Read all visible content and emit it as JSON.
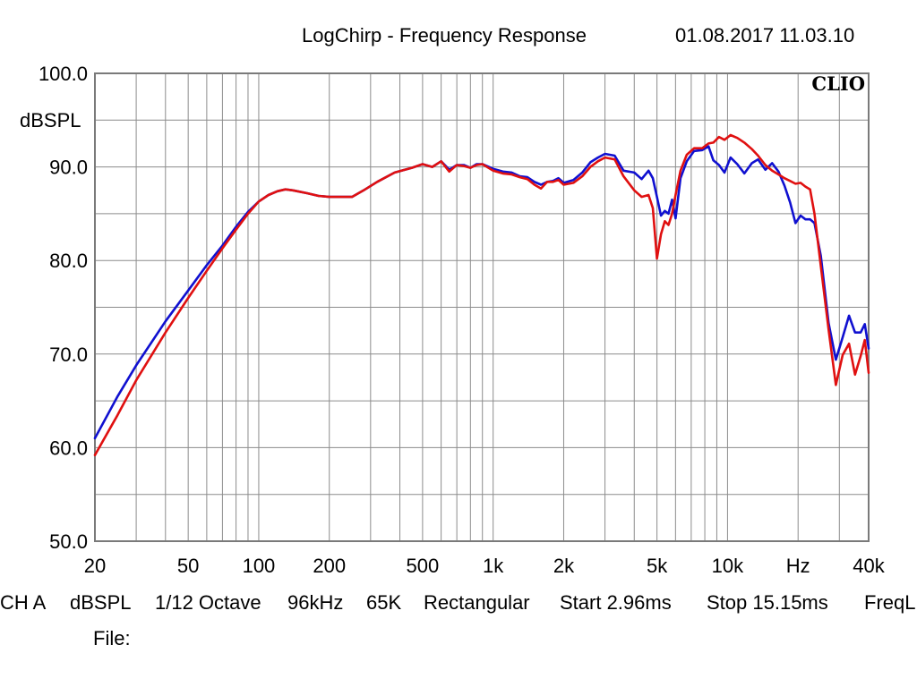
{
  "header": {
    "title": "LogChirp - Frequency Response",
    "datetime": "01.08.2017 11.03.10",
    "logo": "CLIO"
  },
  "footer": {
    "items": [
      "CH A",
      "dBSPL",
      "1/12 Octave",
      "96kHz",
      "65K",
      "Rectangular",
      "Start 2.96ms",
      "Stop 15.15ms",
      "FreqL"
    ],
    "file_label": "File:"
  },
  "chart_data": {
    "type": "line",
    "title": "LogChirp - Frequency Response",
    "xlabel": "Hz",
    "ylabel": "dBSPL",
    "xscale": "log",
    "xlim": [
      20,
      40000
    ],
    "ylim": [
      50,
      100
    ],
    "grid": true,
    "x_ticks": [
      {
        "value": 20,
        "label": "20"
      },
      {
        "value": 50,
        "label": "50"
      },
      {
        "value": 100,
        "label": "100"
      },
      {
        "value": 200,
        "label": "200"
      },
      {
        "value": 500,
        "label": "500"
      },
      {
        "value": 1000,
        "label": "1k"
      },
      {
        "value": 2000,
        "label": "2k"
      },
      {
        "value": 5000,
        "label": "5k"
      },
      {
        "value": 10000,
        "label": "10k"
      },
      {
        "value": 20000,
        "label": "Hz"
      },
      {
        "value": 40000,
        "label": "40k"
      }
    ],
    "y_ticks": [
      {
        "value": 100,
        "label": "100.0"
      },
      {
        "value": 90,
        "label": "90.0"
      },
      {
        "value": 80,
        "label": "80.0"
      },
      {
        "value": 70,
        "label": "70.0"
      },
      {
        "value": 60,
        "label": "60.0"
      },
      {
        "value": 50,
        "label": "50.0"
      }
    ],
    "series": [
      {
        "color": "#1010d0",
        "points": [
          [
            20,
            61.0
          ],
          [
            25,
            65.5
          ],
          [
            30,
            68.8
          ],
          [
            40,
            73.5
          ],
          [
            50,
            76.8
          ],
          [
            60,
            79.5
          ],
          [
            70,
            81.6
          ],
          [
            80,
            83.6
          ],
          [
            90,
            85.2
          ],
          [
            100,
            86.3
          ],
          [
            110,
            87.0
          ],
          [
            120,
            87.4
          ],
          [
            130,
            87.6
          ],
          [
            140,
            87.5
          ],
          [
            160,
            87.2
          ],
          [
            180,
            86.9
          ],
          [
            200,
            86.8
          ],
          [
            220,
            86.8
          ],
          [
            250,
            86.8
          ],
          [
            280,
            87.5
          ],
          [
            320,
            88.4
          ],
          [
            380,
            89.4
          ],
          [
            450,
            89.9
          ],
          [
            500,
            90.3
          ],
          [
            550,
            90.0
          ],
          [
            600,
            90.6
          ],
          [
            650,
            89.7
          ],
          [
            700,
            90.2
          ],
          [
            750,
            90.2
          ],
          [
            800,
            89.9
          ],
          [
            850,
            90.3
          ],
          [
            900,
            90.3
          ],
          [
            1000,
            89.8
          ],
          [
            1100,
            89.5
          ],
          [
            1200,
            89.4
          ],
          [
            1300,
            89.0
          ],
          [
            1400,
            88.9
          ],
          [
            1500,
            88.4
          ],
          [
            1600,
            88.1
          ],
          [
            1700,
            88.4
          ],
          [
            1800,
            88.5
          ],
          [
            1900,
            88.8
          ],
          [
            2000,
            88.3
          ],
          [
            2200,
            88.6
          ],
          [
            2400,
            89.4
          ],
          [
            2600,
            90.5
          ],
          [
            2800,
            91.0
          ],
          [
            3000,
            91.4
          ],
          [
            3300,
            91.2
          ],
          [
            3600,
            89.6
          ],
          [
            4000,
            89.4
          ],
          [
            4300,
            88.7
          ],
          [
            4600,
            89.6
          ],
          [
            4800,
            88.8
          ],
          [
            5000,
            86.8
          ],
          [
            5200,
            84.8
          ],
          [
            5400,
            85.3
          ],
          [
            5600,
            85.0
          ],
          [
            5800,
            86.5
          ],
          [
            6000,
            84.5
          ],
          [
            6300,
            88.8
          ],
          [
            6700,
            90.6
          ],
          [
            7200,
            91.7
          ],
          [
            7800,
            91.8
          ],
          [
            8300,
            92.2
          ],
          [
            8700,
            90.7
          ],
          [
            9200,
            90.2
          ],
          [
            9700,
            89.4
          ],
          [
            10300,
            91.0
          ],
          [
            11000,
            90.3
          ],
          [
            11800,
            89.3
          ],
          [
            12700,
            90.4
          ],
          [
            13500,
            90.8
          ],
          [
            14500,
            89.7
          ],
          [
            15500,
            90.4
          ],
          [
            16500,
            89.5
          ],
          [
            17500,
            88.0
          ],
          [
            18500,
            86.2
          ],
          [
            19500,
            84.0
          ],
          [
            20500,
            84.8
          ],
          [
            21500,
            84.4
          ],
          [
            22500,
            84.4
          ],
          [
            23500,
            84.0
          ],
          [
            25000,
            80.5
          ],
          [
            27000,
            73.3
          ],
          [
            29000,
            69.4
          ],
          [
            31000,
            71.8
          ],
          [
            33000,
            74.1
          ],
          [
            35000,
            72.3
          ],
          [
            37000,
            72.3
          ],
          [
            38500,
            73.2
          ],
          [
            40000,
            70.6
          ]
        ]
      },
      {
        "color": "#e01010",
        "points": [
          [
            20,
            59.2
          ],
          [
            25,
            63.5
          ],
          [
            30,
            67.2
          ],
          [
            40,
            72.3
          ],
          [
            50,
            76.0
          ],
          [
            60,
            78.9
          ],
          [
            70,
            81.3
          ],
          [
            80,
            83.3
          ],
          [
            90,
            85.0
          ],
          [
            100,
            86.3
          ],
          [
            110,
            87.0
          ],
          [
            120,
            87.4
          ],
          [
            130,
            87.6
          ],
          [
            140,
            87.5
          ],
          [
            160,
            87.2
          ],
          [
            180,
            86.9
          ],
          [
            200,
            86.8
          ],
          [
            220,
            86.8
          ],
          [
            250,
            86.8
          ],
          [
            280,
            87.5
          ],
          [
            320,
            88.4
          ],
          [
            380,
            89.4
          ],
          [
            450,
            89.9
          ],
          [
            500,
            90.3
          ],
          [
            550,
            90.0
          ],
          [
            600,
            90.6
          ],
          [
            650,
            89.5
          ],
          [
            700,
            90.2
          ],
          [
            750,
            90.1
          ],
          [
            800,
            89.9
          ],
          [
            850,
            90.2
          ],
          [
            900,
            90.3
          ],
          [
            1000,
            89.6
          ],
          [
            1100,
            89.3
          ],
          [
            1200,
            89.2
          ],
          [
            1300,
            88.9
          ],
          [
            1400,
            88.7
          ],
          [
            1500,
            88.1
          ],
          [
            1600,
            87.7
          ],
          [
            1700,
            88.4
          ],
          [
            1800,
            88.4
          ],
          [
            1900,
            88.6
          ],
          [
            2000,
            88.1
          ],
          [
            2200,
            88.3
          ],
          [
            2400,
            89.0
          ],
          [
            2600,
            90.0
          ],
          [
            2800,
            90.6
          ],
          [
            3000,
            91.0
          ],
          [
            3300,
            90.8
          ],
          [
            3600,
            89.0
          ],
          [
            4000,
            87.5
          ],
          [
            4300,
            86.8
          ],
          [
            4600,
            87.0
          ],
          [
            4800,
            85.6
          ],
          [
            5000,
            80.2
          ],
          [
            5200,
            82.8
          ],
          [
            5400,
            84.2
          ],
          [
            5600,
            83.8
          ],
          [
            5800,
            85.0
          ],
          [
            6000,
            87.0
          ],
          [
            6300,
            89.6
          ],
          [
            6700,
            91.3
          ],
          [
            7200,
            92.0
          ],
          [
            7800,
            92.0
          ],
          [
            8300,
            92.5
          ],
          [
            8700,
            92.6
          ],
          [
            9200,
            93.2
          ],
          [
            9700,
            92.9
          ],
          [
            10300,
            93.4
          ],
          [
            11000,
            93.1
          ],
          [
            11800,
            92.6
          ],
          [
            12700,
            91.9
          ],
          [
            13500,
            91.2
          ],
          [
            14500,
            90.2
          ],
          [
            15500,
            89.6
          ],
          [
            16500,
            89.2
          ],
          [
            17500,
            88.8
          ],
          [
            18500,
            88.5
          ],
          [
            19500,
            88.2
          ],
          [
            20500,
            88.3
          ],
          [
            21500,
            87.9
          ],
          [
            22500,
            87.6
          ],
          [
            23500,
            85.0
          ],
          [
            25000,
            79.4
          ],
          [
            27000,
            72.6
          ],
          [
            29000,
            66.7
          ],
          [
            31000,
            69.9
          ],
          [
            33000,
            71.1
          ],
          [
            35000,
            67.8
          ],
          [
            37000,
            69.8
          ],
          [
            38500,
            71.5
          ],
          [
            40000,
            68.0
          ]
        ]
      }
    ]
  },
  "colors": {
    "frame": "#7a7a7a",
    "grid": "#8c8c8c",
    "blue_trace": "#1010d0",
    "red_trace": "#e01010"
  }
}
